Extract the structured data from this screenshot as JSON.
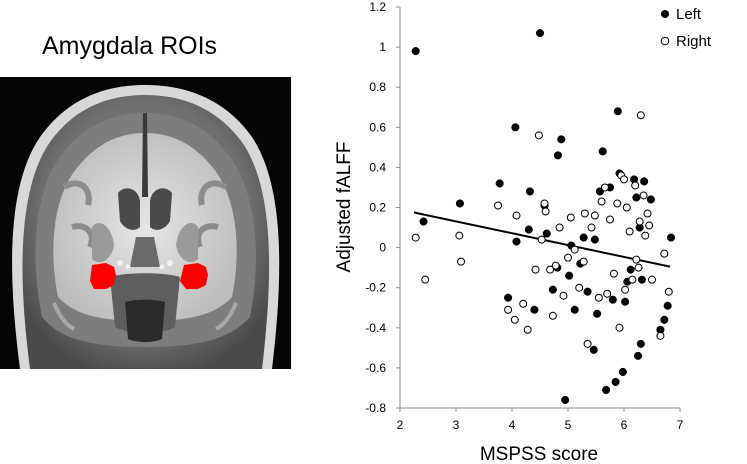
{
  "roi_panel": {
    "title": "Amygdala ROIs",
    "roi_color": "#ff0000"
  },
  "chart_data": {
    "type": "scatter",
    "xlabel": "MSPSS score",
    "ylabel": "Adjusted fALFF",
    "xlim": [
      2,
      7
    ],
    "ylim": [
      -0.8,
      1.2
    ],
    "xticks": [
      2,
      3,
      4,
      5,
      6,
      7
    ],
    "yticks": [
      -0.8,
      -0.6,
      -0.4,
      -0.2,
      0,
      0.2,
      0.4,
      0.6,
      0.8,
      1,
      1.2
    ],
    "ytick_labels": [
      "-0.8",
      "-0.6",
      "-0.4",
      "-0.2",
      "0",
      "0.2",
      "0.4",
      "0.6",
      "0.8",
      "1",
      "1.2"
    ],
    "grid": false,
    "legend_position": "top-right",
    "fit_line": {
      "x": [
        2.25,
        6.82
      ],
      "y": [
        0.175,
        -0.095
      ],
      "color": "#000000"
    },
    "series": [
      {
        "name": "Left",
        "marker": "filled-circle",
        "color": "#000000",
        "points": [
          [
            2.28,
            0.98
          ],
          [
            2.42,
            0.13
          ],
          [
            3.07,
            0.22
          ],
          [
            3.78,
            0.32
          ],
          [
            3.93,
            -0.25
          ],
          [
            4.06,
            0.6
          ],
          [
            4.08,
            0.03
          ],
          [
            4.3,
            0.09
          ],
          [
            4.32,
            0.28
          ],
          [
            4.4,
            -0.31
          ],
          [
            4.5,
            1.07
          ],
          [
            4.58,
            0.21
          ],
          [
            4.62,
            0.07
          ],
          [
            4.73,
            -0.21
          ],
          [
            4.81,
            -0.1
          ],
          [
            4.82,
            0.46
          ],
          [
            4.88,
            0.54
          ],
          [
            4.95,
            -0.76
          ],
          [
            5.02,
            -0.14
          ],
          [
            5.06,
            0.01
          ],
          [
            5.12,
            -0.31
          ],
          [
            5.22,
            -0.08
          ],
          [
            5.28,
            0.05
          ],
          [
            5.35,
            -0.22
          ],
          [
            5.46,
            -0.51
          ],
          [
            5.48,
            0.04
          ],
          [
            5.52,
            -0.33
          ],
          [
            5.57,
            0.28
          ],
          [
            5.62,
            0.48
          ],
          [
            5.68,
            -0.71
          ],
          [
            5.75,
            0.3
          ],
          [
            5.8,
            -0.26
          ],
          [
            5.85,
            -0.67
          ],
          [
            5.89,
            0.68
          ],
          [
            5.92,
            0.37
          ],
          [
            5.98,
            -0.62
          ],
          [
            6.02,
            -0.27
          ],
          [
            6.06,
            -0.17
          ],
          [
            6.12,
            -0.11
          ],
          [
            6.18,
            0.34
          ],
          [
            6.22,
            0.25
          ],
          [
            6.25,
            -0.54
          ],
          [
            6.28,
            0.1
          ],
          [
            6.3,
            -0.48
          ],
          [
            6.32,
            -0.16
          ],
          [
            6.36,
            0.33
          ],
          [
            6.48,
            0.24
          ],
          [
            6.65,
            -0.41
          ],
          [
            6.72,
            -0.36
          ],
          [
            6.78,
            -0.29
          ],
          [
            6.84,
            0.05
          ]
        ]
      },
      {
        "name": "Right",
        "marker": "open-circle",
        "color": "#000000",
        "points": [
          [
            2.28,
            0.05
          ],
          [
            2.45,
            -0.16
          ],
          [
            3.06,
            0.06
          ],
          [
            3.09,
            -0.07
          ],
          [
            3.75,
            0.21
          ],
          [
            3.93,
            -0.31
          ],
          [
            4.05,
            -0.36
          ],
          [
            4.08,
            0.16
          ],
          [
            4.2,
            -0.28
          ],
          [
            4.28,
            -0.41
          ],
          [
            4.42,
            -0.11
          ],
          [
            4.48,
            0.56
          ],
          [
            4.53,
            0.04
          ],
          [
            4.58,
            0.22
          ],
          [
            4.6,
            0.18
          ],
          [
            4.68,
            -0.11
          ],
          [
            4.73,
            -0.34
          ],
          [
            4.78,
            -0.09
          ],
          [
            4.85,
            0.1
          ],
          [
            4.92,
            -0.24
          ],
          [
            5.0,
            -0.05
          ],
          [
            5.05,
            0.15
          ],
          [
            5.12,
            -0.01
          ],
          [
            5.2,
            -0.2
          ],
          [
            5.28,
            -0.07
          ],
          [
            5.3,
            0.17
          ],
          [
            5.35,
            -0.48
          ],
          [
            5.42,
            0.1
          ],
          [
            5.48,
            0.16
          ],
          [
            5.55,
            -0.25
          ],
          [
            5.6,
            0.23
          ],
          [
            5.66,
            0.3
          ],
          [
            5.7,
            -0.23
          ],
          [
            5.75,
            0.14
          ],
          [
            5.82,
            -0.13
          ],
          [
            5.88,
            0.22
          ],
          [
            5.92,
            -0.4
          ],
          [
            5.95,
            0.36
          ],
          [
            6.0,
            0.34
          ],
          [
            6.02,
            -0.21
          ],
          [
            6.05,
            0.2
          ],
          [
            6.1,
            0.08
          ],
          [
            6.15,
            -0.16
          ],
          [
            6.2,
            0.31
          ],
          [
            6.22,
            -0.06
          ],
          [
            6.26,
            -0.1
          ],
          [
            6.28,
            0.13
          ],
          [
            6.3,
            0.66
          ],
          [
            6.35,
            0.26
          ],
          [
            6.38,
            0.06
          ],
          [
            6.42,
            0.17
          ],
          [
            6.45,
            0.11
          ],
          [
            6.5,
            -0.16
          ],
          [
            6.65,
            -0.44
          ],
          [
            6.72,
            -0.03
          ],
          [
            6.8,
            -0.22
          ]
        ]
      }
    ]
  }
}
